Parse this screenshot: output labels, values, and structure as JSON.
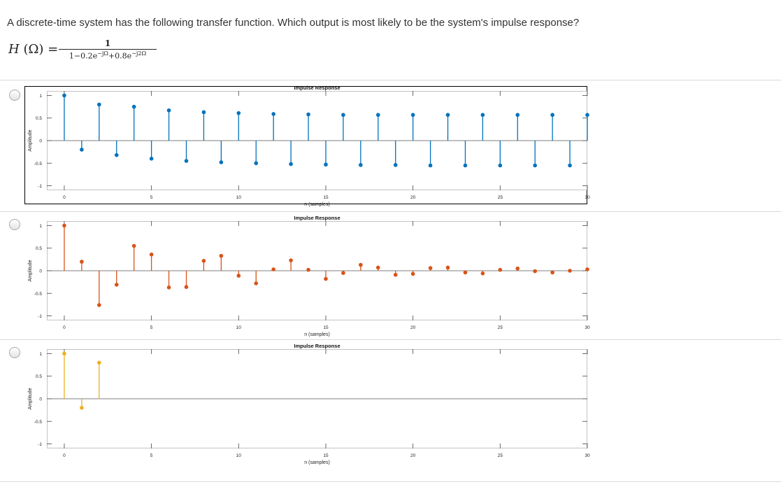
{
  "question": {
    "text": "A discrete-time system has the following transfer function. Which output is most likely to be the system's impulse response?",
    "formula_lhs_name": "H",
    "formula_lhs_arg": "(Ω)",
    "formula_equals": "=",
    "formula_numerator": "1",
    "formula_denominator_parts": [
      "1−0.2e",
      "−jΩ",
      "+0.8e",
      "−j2Ω"
    ]
  },
  "options": [
    {
      "color": "#0072BD",
      "boxed": true,
      "chart_data": {
        "type": "stem",
        "title": "Impulse Response",
        "xlabel": "n (samples)",
        "ylabel": "Amplitude",
        "xlim": [
          -1,
          30
        ],
        "ylim": [
          -1.1,
          1.1
        ],
        "xticks": [
          0,
          5,
          10,
          15,
          20,
          25,
          30
        ],
        "yticks": [
          -1,
          -0.5,
          0,
          0.5,
          1
        ],
        "ytick_labels": [
          "-1",
          "-0.5",
          "0",
          "0.5",
          "1"
        ],
        "x": [
          0,
          1,
          2,
          3,
          4,
          5,
          6,
          7,
          8,
          9,
          10,
          11,
          12,
          13,
          14,
          15,
          16,
          17,
          18,
          19,
          20,
          21,
          22,
          23,
          24,
          25,
          26,
          27,
          28,
          29,
          30
        ],
        "values": [
          1,
          -0.2,
          0.8,
          -0.32,
          0.75,
          -0.4,
          0.67,
          -0.45,
          0.63,
          -0.48,
          0.61,
          -0.5,
          0.59,
          -0.52,
          0.58,
          -0.53,
          0.57,
          -0.54,
          0.57,
          -0.54,
          0.57,
          -0.55,
          0.57,
          -0.55,
          0.57,
          -0.55,
          0.57,
          -0.55,
          0.57,
          -0.55,
          0.57
        ]
      }
    },
    {
      "color": "#D95319",
      "boxed": false,
      "chart_data": {
        "type": "stem",
        "title": "Impulse Response",
        "xlabel": "n (samples)",
        "ylabel": "Amplitude",
        "xlim": [
          -1,
          30
        ],
        "ylim": [
          -1.1,
          1.1
        ],
        "xticks": [
          0,
          5,
          10,
          15,
          20,
          25,
          30
        ],
        "yticks": [
          -1,
          -0.5,
          0,
          0.5,
          1
        ],
        "ytick_labels": [
          "-1",
          "-0.5",
          "0",
          "0.5",
          "1"
        ],
        "x": [
          0,
          1,
          2,
          3,
          4,
          5,
          6,
          7,
          8,
          9,
          10,
          11,
          12,
          13,
          14,
          15,
          16,
          17,
          18,
          19,
          20,
          21,
          22,
          23,
          24,
          25,
          26,
          27,
          28,
          29,
          30
        ],
        "values": [
          1,
          0.2,
          -0.76,
          -0.31,
          0.55,
          0.36,
          -0.37,
          -0.36,
          0.22,
          0.33,
          -0.11,
          -0.28,
          0.03,
          0.23,
          0.02,
          -0.18,
          -0.05,
          0.13,
          0.07,
          -0.09,
          -0.07,
          0.06,
          0.07,
          -0.04,
          -0.06,
          0.02,
          0.05,
          -0.01,
          -0.04,
          0,
          0.03
        ]
      }
    },
    {
      "color": "#EDB120",
      "boxed": false,
      "chart_data": {
        "type": "stem",
        "title": "Impulse Response",
        "xlabel": "n (samples)",
        "ylabel": "Amplitude",
        "xlim": [
          -1,
          30
        ],
        "ylim": [
          -1.1,
          1.1
        ],
        "xticks": [
          0,
          5,
          10,
          15,
          20,
          25,
          30
        ],
        "yticks": [
          -1,
          -0.5,
          0,
          0.5,
          1
        ],
        "ytick_labels": [
          "-1",
          "-0.5",
          "0",
          "0.5",
          "1"
        ],
        "x": [
          0,
          1,
          2
        ],
        "values": [
          1,
          -0.2,
          0.8
        ]
      }
    }
  ]
}
